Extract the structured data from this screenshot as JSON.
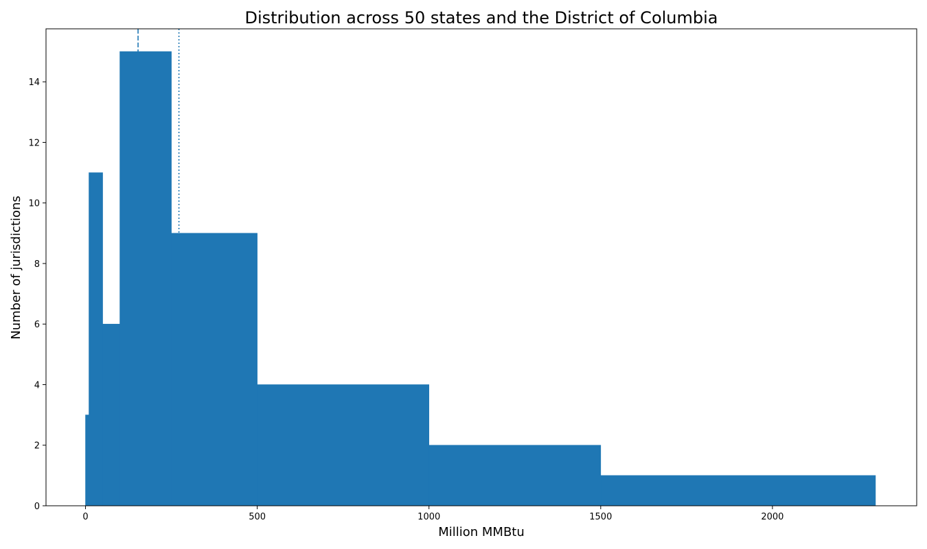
{
  "chart_data": {
    "type": "bar",
    "title": "Distribution across 50 states and the District of Columbia",
    "xlabel": "Million MMBtu",
    "ylabel": "Number of jurisdictions",
    "xlim": [
      -115,
      2420
    ],
    "ylim": [
      0,
      15.75
    ],
    "xticks": [
      0,
      500,
      1000,
      1500,
      2000
    ],
    "yticks": [
      0,
      2,
      4,
      6,
      8,
      10,
      12,
      14
    ],
    "bins": [
      {
        "x0": 0,
        "x1": 10,
        "count": 3
      },
      {
        "x0": 10,
        "x1": 50,
        "count": 11
      },
      {
        "x0": 50,
        "x1": 100,
        "count": 6
      },
      {
        "x0": 100,
        "x1": 250,
        "count": 15
      },
      {
        "x0": 250,
        "x1": 500,
        "count": 9
      },
      {
        "x0": 500,
        "x1": 1000,
        "count": 4
      },
      {
        "x0": 1000,
        "x1": 1500,
        "count": 2
      },
      {
        "x0": 1500,
        "x1": 2300,
        "count": 1
      }
    ],
    "reference_lines": [
      {
        "style": "dashed",
        "x": 153
      },
      {
        "style": "dotted",
        "x": 272
      }
    ],
    "bar_color": "#1f77b4",
    "grid": false,
    "legend": "none"
  }
}
